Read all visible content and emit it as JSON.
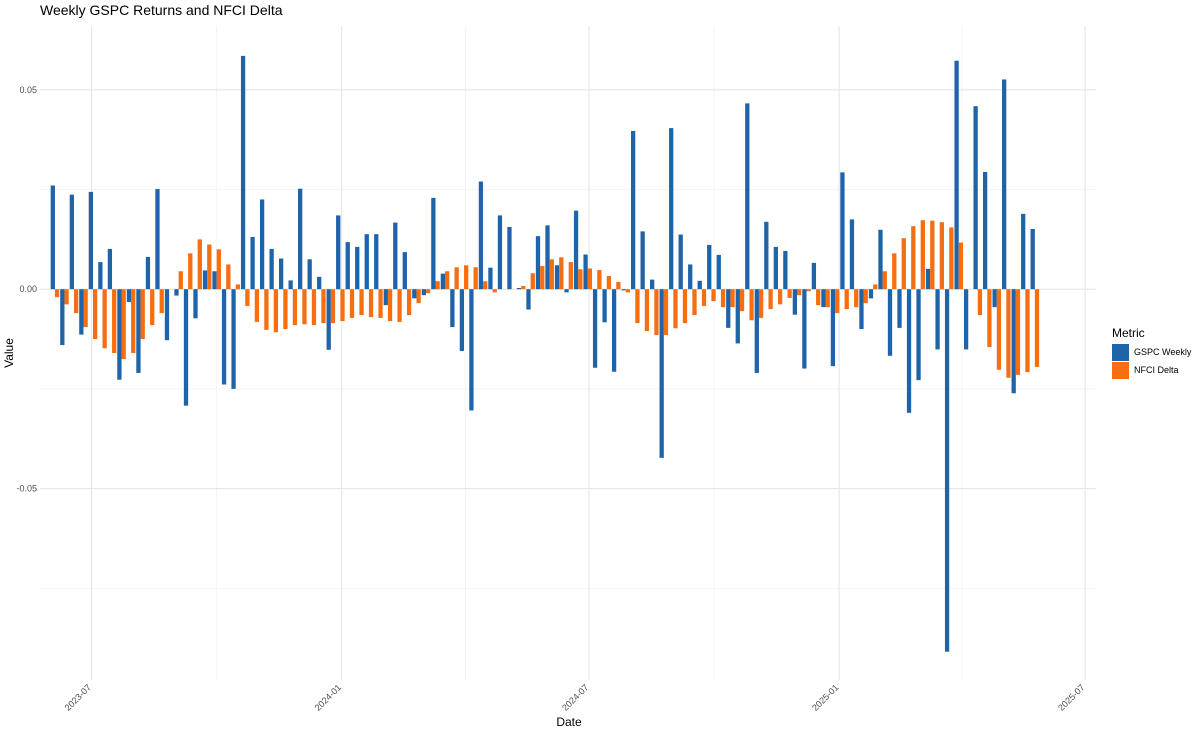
{
  "chart_data": {
    "type": "bar",
    "title": "Weekly GSPC Returns and NFCI Delta",
    "xlabel": "Date",
    "ylabel": "Value",
    "ylim": [
      -0.098,
      0.066
    ],
    "xlim": [
      "2023-05-24",
      "2025-07-09"
    ],
    "yticks": [
      {
        "value": 0.05,
        "label": "0.05"
      },
      {
        "value": 0.0,
        "label": "0.00"
      },
      {
        "value": -0.05,
        "label": "-0.05"
      }
    ],
    "xticks": [
      {
        "date": "2023-07-01",
        "label": "2023-07"
      },
      {
        "date": "2024-01-01",
        "label": "2024-01"
      },
      {
        "date": "2024-07-01",
        "label": "2024-07"
      },
      {
        "date": "2025-01-01",
        "label": "2025-01"
      },
      {
        "date": "2025-07-01",
        "label": "2025-07"
      }
    ],
    "grid": true,
    "legend": {
      "title": "Metric",
      "position": "right"
    },
    "week_start": "2023-06-04",
    "series": [
      {
        "name": "GSPC Weekly",
        "color": "#1f63a8",
        "values": [
          0.026,
          -0.014,
          0.0237,
          -0.0114,
          0.0244,
          0.0068,
          0.0101,
          -0.0227,
          -0.0032,
          -0.021,
          0.0081,
          0.0251,
          -0.0128,
          -0.0016,
          -0.0292,
          -0.0073,
          0.0047,
          0.0045,
          -0.0239,
          -0.025,
          0.0585,
          0.0131,
          0.0225,
          0.0101,
          0.0077,
          0.0022,
          0.0252,
          0.0075,
          0.0031,
          -0.0152,
          0.0185,
          0.0118,
          0.0106,
          0.0138,
          0.0138,
          -0.004,
          0.0167,
          0.0093,
          -0.0023,
          -0.0015,
          0.0229,
          0.0039,
          -0.0095,
          -0.0155,
          -0.0304,
          0.027,
          0.0054,
          0.0185,
          0.0156,
          0.0003,
          -0.0051,
          0.0133,
          0.016,
          0.006,
          -0.0008,
          0.0197,
          0.0087,
          -0.0197,
          -0.0083,
          -0.0207,
          -0.0003,
          0.0397,
          0.0145,
          0.0024,
          -0.0423,
          0.0404,
          0.0137,
          0.0062,
          0.0021,
          0.0111,
          0.0086,
          -0.0097,
          -0.0136,
          0.0466,
          -0.021,
          0.0169,
          0.0106,
          0.0096,
          -0.0064,
          -0.0199,
          0.0066,
          -0.0045,
          -0.0193,
          0.0293,
          0.0175,
          -0.01,
          -0.0023,
          0.0149,
          -0.0167,
          -0.0097,
          -0.031,
          -0.0228,
          0.0051,
          -0.0151,
          -0.0909,
          0.0573,
          -0.0151,
          0.0459,
          0.0294,
          -0.0045,
          0.0526,
          -0.0261,
          0.0189,
          0.0151
        ]
      },
      {
        "name": "NFCI Delta",
        "color": "#f76e11",
        "values": [
          -0.002,
          -0.0038,
          -0.006,
          -0.0095,
          -0.0125,
          -0.0148,
          -0.016,
          -0.0175,
          -0.016,
          -0.0125,
          -0.009,
          -0.006,
          0.0,
          0.0045,
          0.009,
          0.0125,
          0.0112,
          0.01,
          0.0062,
          0.0012,
          -0.0042,
          -0.0082,
          -0.0102,
          -0.0108,
          -0.01,
          -0.009,
          -0.0088,
          -0.009,
          -0.0085,
          -0.0085,
          -0.008,
          -0.0072,
          -0.0065,
          -0.007,
          -0.0072,
          -0.008,
          -0.0082,
          -0.0065,
          -0.0035,
          -0.001,
          0.002,
          0.0045,
          0.0055,
          0.006,
          0.0055,
          0.002,
          -0.0008,
          0.0,
          0.0,
          0.0008,
          0.004,
          0.0058,
          0.0075,
          0.008,
          0.0068,
          0.005,
          0.0052,
          0.0048,
          0.0033,
          0.0018,
          -0.0008,
          -0.0085,
          -0.0105,
          -0.0115,
          -0.0115,
          -0.0098,
          -0.0085,
          -0.0065,
          -0.0042,
          -0.003,
          -0.0045,
          -0.0045,
          -0.0055,
          -0.0078,
          -0.0072,
          -0.005,
          -0.0038,
          -0.0022,
          -0.0015,
          -0.0005,
          -0.004,
          -0.0045,
          -0.006,
          -0.005,
          -0.0045,
          -0.0035,
          0.0012,
          0.0045,
          0.009,
          0.0128,
          0.0158,
          0.0173,
          0.0172,
          0.0168,
          0.0155,
          0.0117,
          0.0,
          -0.0065,
          -0.0145,
          -0.0202,
          -0.0222,
          -0.0215,
          -0.0208,
          -0.0195
        ]
      }
    ]
  }
}
